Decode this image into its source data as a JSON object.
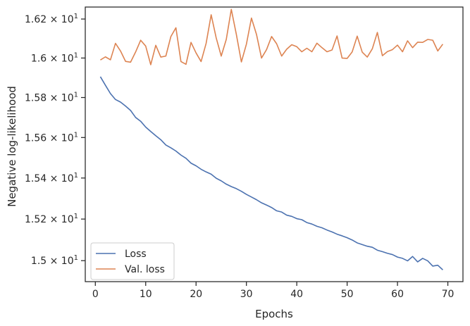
{
  "chart_data": {
    "type": "line",
    "xlabel": "Epochs",
    "ylabel": "Negative log-likelihood",
    "xlim": [
      -2,
      73
    ],
    "ylim": [
      14.9,
      16.262
    ],
    "yscale": "log",
    "grid": false,
    "legend_position": "lower-left",
    "x_ticks": [
      0,
      10,
      20,
      30,
      40,
      50,
      60,
      70
    ],
    "y_ticks": [
      {
        "value": 15.0,
        "mantissa": "1.5",
        "base": "10",
        "exponent": "1"
      },
      {
        "value": 15.2,
        "mantissa": "1.52",
        "base": "10",
        "exponent": "1"
      },
      {
        "value": 15.4,
        "mantissa": "1.54",
        "base": "10",
        "exponent": "1"
      },
      {
        "value": 15.6,
        "mantissa": "1.56",
        "base": "10",
        "exponent": "1"
      },
      {
        "value": 15.8,
        "mantissa": "1.58",
        "base": "10",
        "exponent": "1"
      },
      {
        "value": 16.0,
        "mantissa": "1.6",
        "base": "10",
        "exponent": "1"
      },
      {
        "value": 16.2,
        "mantissa": "1.62",
        "base": "10",
        "exponent": "1"
      }
    ],
    "x": [
      1,
      2,
      3,
      4,
      5,
      6,
      7,
      8,
      9,
      10,
      11,
      12,
      13,
      14,
      15,
      16,
      17,
      18,
      19,
      20,
      21,
      22,
      23,
      24,
      25,
      26,
      27,
      28,
      29,
      30,
      31,
      32,
      33,
      34,
      35,
      36,
      37,
      38,
      39,
      40,
      41,
      42,
      43,
      44,
      45,
      46,
      47,
      48,
      49,
      50,
      51,
      52,
      53,
      54,
      55,
      56,
      57,
      58,
      59,
      60,
      61,
      62,
      63,
      64,
      65,
      66,
      67,
      68,
      69
    ],
    "series": [
      {
        "name": "Loss",
        "color": "#4c72b0",
        "values": [
          15.905,
          15.862,
          15.82,
          15.79,
          15.777,
          15.757,
          15.735,
          15.7,
          15.681,
          15.652,
          15.63,
          15.609,
          15.589,
          15.563,
          15.549,
          15.533,
          15.513,
          15.497,
          15.473,
          15.46,
          15.443,
          15.43,
          15.419,
          15.399,
          15.386,
          15.37,
          15.358,
          15.348,
          15.335,
          15.32,
          15.307,
          15.294,
          15.279,
          15.268,
          15.256,
          15.24,
          15.234,
          15.219,
          15.213,
          15.202,
          15.197,
          15.183,
          15.176,
          15.165,
          15.158,
          15.147,
          15.138,
          15.127,
          15.119,
          15.11,
          15.099,
          15.085,
          15.077,
          15.069,
          15.064,
          15.05,
          15.043,
          15.035,
          15.029,
          15.017,
          15.011,
          14.999,
          15.02,
          14.994,
          15.011,
          14.999,
          14.974,
          14.978,
          14.956
        ]
      },
      {
        "name": "Val. loss",
        "color": "#dd8452",
        "values": [
          15.99,
          16.006,
          15.991,
          16.075,
          16.036,
          15.983,
          15.979,
          16.031,
          16.091,
          16.061,
          15.966,
          16.065,
          16.005,
          16.01,
          16.11,
          16.155,
          15.982,
          15.968,
          16.08,
          16.026,
          15.982,
          16.075,
          16.222,
          16.103,
          16.01,
          16.095,
          16.25,
          16.121,
          15.98,
          16.071,
          16.205,
          16.121,
          16.0,
          16.043,
          16.11,
          16.073,
          16.01,
          16.045,
          16.068,
          16.058,
          16.032,
          16.05,
          16.032,
          16.076,
          16.053,
          16.032,
          16.041,
          16.113,
          16.0,
          15.998,
          16.031,
          16.112,
          16.03,
          16.005,
          16.047,
          16.131,
          16.012,
          16.033,
          16.043,
          16.066,
          16.032,
          16.088,
          16.053,
          16.081,
          16.08,
          16.095,
          16.091,
          16.036,
          16.071
        ]
      }
    ]
  }
}
